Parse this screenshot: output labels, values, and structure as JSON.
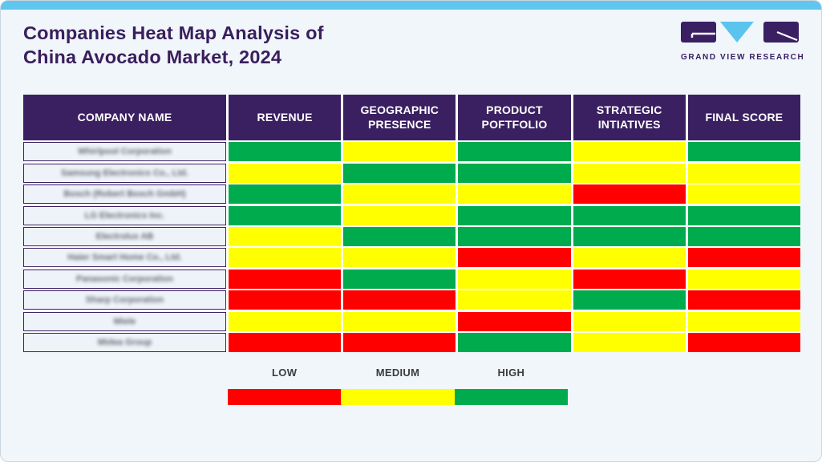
{
  "header": {
    "title_line1": "Companies Heat Map Analysis of",
    "title_line2": "China Avocado Market, 2024",
    "logo_text": "GRAND VIEW RESEARCH"
  },
  "colors": {
    "low": "#FF0000",
    "medium": "#FFFF00",
    "high": "#00AB4E",
    "header_bg": "#3B2061",
    "title_text": "#3A1E5D",
    "accent_bar": "#5EC6EF",
    "card_bg": "#F0F6FA"
  },
  "chart_data": {
    "type": "heatmap",
    "title": "Companies Heat Map Analysis of China Avocado Market, 2024",
    "columns": [
      "COMPANY NAME",
      "REVENUE",
      "GEOGRAPHIC PRESENCE",
      "PRODUCT POFTFOLIO",
      "STRATEGIC INTIATIVES",
      "FINAL SCORE"
    ],
    "scale_labels": {
      "low": "LOW",
      "medium": "MEDIUM",
      "high": "HIGH"
    },
    "rows": [
      {
        "company": "Whirlpool Corporation",
        "values": [
          "high",
          "medium",
          "high",
          "medium",
          "high"
        ]
      },
      {
        "company": "Samsung Electronics Co., Ltd.",
        "values": [
          "medium",
          "high",
          "high",
          "medium",
          "medium"
        ]
      },
      {
        "company": "Bosch (Robert Bosch GmbH)",
        "values": [
          "high",
          "medium",
          "medium",
          "low",
          "medium"
        ]
      },
      {
        "company": "LG Electronics Inc.",
        "values": [
          "high",
          "medium",
          "high",
          "high",
          "high"
        ]
      },
      {
        "company": "Electrolux AB",
        "values": [
          "medium",
          "high",
          "high",
          "high",
          "high"
        ]
      },
      {
        "company": "Haier Smart Home Co., Ltd.",
        "values": [
          "medium",
          "medium",
          "low",
          "medium",
          "low"
        ]
      },
      {
        "company": "Panasonic Corporation",
        "values": [
          "low",
          "high",
          "medium",
          "low",
          "medium"
        ]
      },
      {
        "company": "Sharp Corporation",
        "values": [
          "low",
          "low",
          "medium",
          "high",
          "low"
        ]
      },
      {
        "company": "Miele",
        "values": [
          "medium",
          "medium",
          "low",
          "medium",
          "medium"
        ]
      },
      {
        "company": "Midea Group",
        "values": [
          "low",
          "low",
          "high",
          "medium",
          "low"
        ]
      }
    ],
    "legend": [
      {
        "label": "LOW",
        "key": "low"
      },
      {
        "label": "MEDIUM",
        "key": "medium"
      },
      {
        "label": "HIGH",
        "key": "high"
      }
    ]
  }
}
